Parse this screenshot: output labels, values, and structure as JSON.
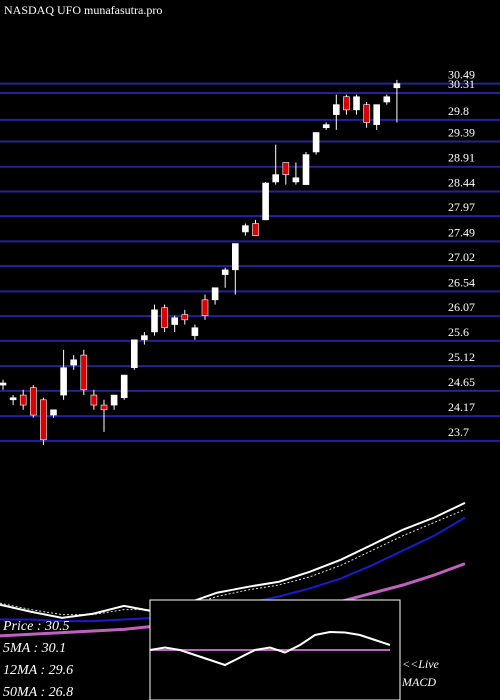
{
  "chart_data": [
    {
      "type": "candlestick",
      "title": "NASDAQ UFO munafasutra.pro",
      "up_color": "#ffffff",
      "down_color": "#dd0000",
      "grid_color": "#23239a",
      "ylim": [
        23.45,
        30.9
      ],
      "yticks": [
        30.49,
        30.31,
        29.8,
        29.39,
        28.91,
        28.44,
        27.97,
        27.49,
        27.02,
        26.54,
        26.07,
        25.6,
        25.12,
        24.65,
        24.17,
        23.7
      ],
      "grid": true,
      "open": [
        24.76,
        24.48,
        24.57,
        24.71,
        24.48,
        24.19,
        24.57,
        25.14,
        25.33,
        24.57,
        24.38,
        24.38,
        24.52,
        25.09,
        25.62,
        25.77,
        26.23,
        25.91,
        26.1,
        25.7,
        26.38,
        26.38,
        26.86,
        26.95,
        27.67,
        27.83,
        27.9,
        28.62,
        28.99,
        28.62,
        28.57,
        29.19,
        29.65,
        29.9,
        30.24,
        29.99,
        30.09,
        29.71,
        30.14,
        30.41
      ],
      "high": [
        24.86,
        24.57,
        24.67,
        24.76,
        24.52,
        24.29,
        25.43,
        25.33,
        25.43,
        24.67,
        24.48,
        24.57,
        24.95,
        25.62,
        25.77,
        26.29,
        26.29,
        26.08,
        26.19,
        25.91,
        26.48,
        26.61,
        26.99,
        27.45,
        27.83,
        27.9,
        28.62,
        29.33,
        28.99,
        28.99,
        29.19,
        29.56,
        29.75,
        30.28,
        30.28,
        30.28,
        30.14,
        30.09,
        30.28,
        30.56
      ],
      "low": [
        24.67,
        24.38,
        24.29,
        24.14,
        23.62,
        24.14,
        24.48,
        25.05,
        24.57,
        24.29,
        23.87,
        24.29,
        24.48,
        25.05,
        25.53,
        25.7,
        25.77,
        25.77,
        25.91,
        25.62,
        26.0,
        26.29,
        26.61,
        26.48,
        27.6,
        27.6,
        27.9,
        28.57,
        28.57,
        28.57,
        28.57,
        29.14,
        29.61,
        29.61,
        29.9,
        29.9,
        29.65,
        29.61,
        30.09,
        29.75
      ],
      "close": [
        24.8,
        24.52,
        24.38,
        24.19,
        23.72,
        24.29,
        25.09,
        25.24,
        24.67,
        24.38,
        24.29,
        24.57,
        24.95,
        25.62,
        25.7,
        26.19,
        25.85,
        26.04,
        26.0,
        25.85,
        26.08,
        26.61,
        26.95,
        27.45,
        27.79,
        27.6,
        28.6,
        28.76,
        28.76,
        28.7,
        29.14,
        29.56,
        29.71,
        30.09,
        29.99,
        30.24,
        29.75,
        30.09,
        30.24,
        30.49
      ]
    },
    {
      "type": "line",
      "ylim": [
        18.5,
        32.5
      ],
      "series": [
        {
          "name": "Price",
          "color": "#ffffff",
          "dash": false,
          "width": 2,
          "legend": "Price   : 30.5",
          "values": [
            24.3,
            23.87,
            23.5,
            23.75,
            24.23,
            23.87,
            24.36,
            25.03,
            25.39,
            25.7,
            26.31,
            27.04,
            27.95,
            28.87,
            29.6,
            30.5
          ]
        },
        {
          "name": "5MA",
          "color": "#dddddd",
          "dash": true,
          "width": 1,
          "legend": "5MA   : 30.1",
          "values": [
            24.4,
            24.0,
            23.7,
            23.7,
            24.0,
            24.0,
            24.2,
            24.8,
            25.2,
            25.5,
            26.0,
            26.7,
            27.6,
            28.5,
            29.3,
            30.1
          ]
        },
        {
          "name": "12MA",
          "color": "#1a1ad0",
          "dash": false,
          "width": 2,
          "legend": "12MA : 29.6",
          "values": [
            23.4,
            23.4,
            23.3,
            23.3,
            23.4,
            23.5,
            23.7,
            24.0,
            24.4,
            24.8,
            25.3,
            25.9,
            26.7,
            27.6,
            28.5,
            29.6
          ]
        },
        {
          "name": "50MA",
          "color": "#c060c0",
          "dash": false,
          "width": 3,
          "legend": "50MA : 26.8",
          "values": [
            22.4,
            22.5,
            22.6,
            22.7,
            22.8,
            23.0,
            23.1,
            23.3,
            23.5,
            23.8,
            24.1,
            24.5,
            25.0,
            25.5,
            26.1,
            26.8
          ]
        }
      ],
      "live_label": "<<Live",
      "macd_label": "MACD"
    },
    {
      "type": "macd",
      "ylim": [
        -1,
        1
      ],
      "signal": {
        "color": "#c060c0",
        "value": 0
      },
      "series": [
        {
          "color": "#ffffff",
          "values": [
            0.0,
            0.05,
            0.0,
            -0.1,
            -0.2,
            -0.3,
            -0.15,
            0.0,
            0.05,
            -0.05,
            0.1,
            0.3,
            0.36,
            0.35,
            0.3,
            0.2,
            0.1
          ]
        }
      ]
    }
  ]
}
